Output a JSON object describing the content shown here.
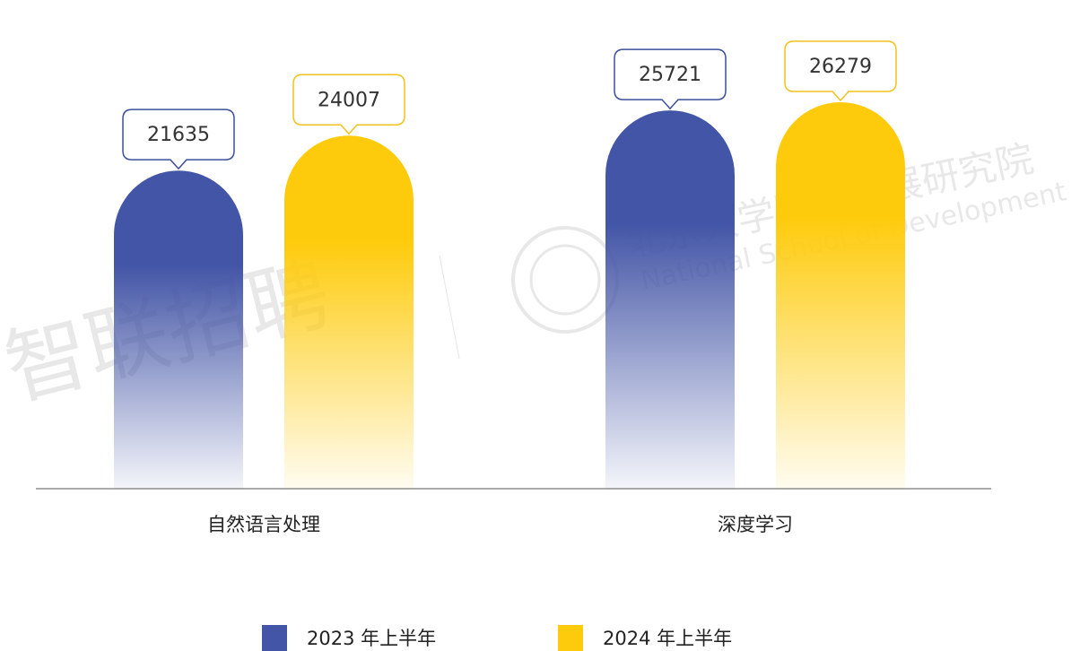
{
  "chart_data": {
    "type": "bar",
    "categories": [
      "自然语言处理",
      "深度学习"
    ],
    "series": [
      {
        "name": "2023 年上半年",
        "color": "#4355a6",
        "values": [
          21635,
          25721
        ]
      },
      {
        "name": "2024 年上半年",
        "color": "#fecb0c",
        "values": [
          24007,
          26279
        ]
      }
    ],
    "ylim": [
      0,
      30000
    ],
    "legend": "bottom",
    "grid": false,
    "watermarks": [
      "智联招聘",
      "北京大学国家发展研究院",
      "National School of Development"
    ]
  }
}
